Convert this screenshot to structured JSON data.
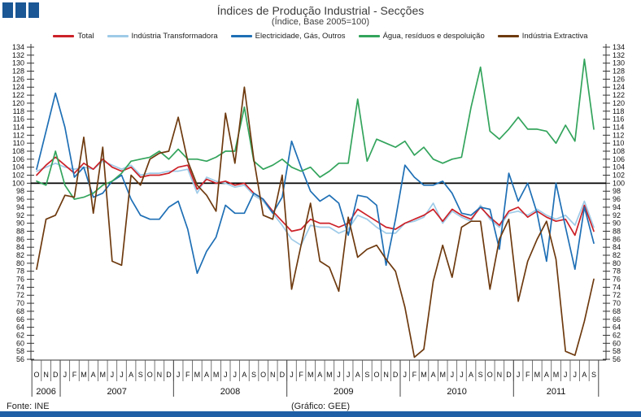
{
  "header": {
    "title": "Índices de Produção Industrial - Secções",
    "subtitle": "(Índice, Base 2005=100)"
  },
  "colors": {
    "logo_blue": "#1a5794",
    "bottom_bar_blue": "#1f5fa6",
    "baseline_black": "#000000"
  },
  "footer": {
    "source": "Fonte: INE",
    "credit": "(Gráfico: GEE)"
  },
  "chart_data": {
    "type": "line",
    "title": "Índices de Produção Industrial - Secções",
    "subtitle": "(Índice, Base 2005=100)",
    "ylim": [
      56,
      134
    ],
    "ytick_step": 2,
    "baseline": 100,
    "grid": false,
    "legend_position": "top",
    "x_month_labels": [
      "O",
      "N",
      "D",
      "J",
      "F",
      "M",
      "A",
      "M",
      "J",
      "J",
      "A",
      "S",
      "O",
      "N",
      "D",
      "J",
      "F",
      "M",
      "A",
      "M",
      "J",
      "J",
      "A",
      "S",
      "O",
      "N",
      "D",
      "J",
      "F",
      "M",
      "A",
      "M",
      "J",
      "J",
      "A",
      "S",
      "O",
      "N",
      "D",
      "J",
      "F",
      "M",
      "A",
      "M",
      "J",
      "J",
      "A",
      "S",
      "O",
      "N",
      "D",
      "J",
      "F",
      "M",
      "A",
      "M",
      "J",
      "J",
      "A",
      "S"
    ],
    "years": [
      {
        "label": "2006",
        "months": 3
      },
      {
        "label": "2007",
        "months": 12
      },
      {
        "label": "2008",
        "months": 12
      },
      {
        "label": "2009",
        "months": 12
      },
      {
        "label": "2010",
        "months": 12
      },
      {
        "label": "2011",
        "months": 9
      }
    ],
    "series": [
      {
        "id": "total",
        "name": "Total",
        "color": "#cc2128",
        "values": [
          102,
          104.5,
          106.5,
          104.5,
          102.5,
          105,
          103.5,
          106,
          104,
          103,
          104,
          101.5,
          102,
          102,
          102.5,
          104,
          104.5,
          98.5,
          101,
          100,
          100.5,
          99.5,
          100,
          97.5,
          96,
          93,
          90.5,
          88,
          88.5,
          91,
          90,
          90,
          89,
          90,
          93.5,
          92,
          90.5,
          89,
          88.5,
          90,
          91,
          92,
          93.5,
          90.5,
          93.5,
          92,
          91,
          94,
          91.5,
          89.5,
          93,
          94,
          91.5,
          93,
          91.5,
          90.5,
          91,
          87,
          94.5,
          88
        ]
      },
      {
        "id": "industria-transformadora",
        "name": "Indústria Transformadora",
        "color": "#9fcbe8",
        "values": [
          103,
          104,
          105,
          104,
          103.5,
          104,
          103.5,
          105.5,
          104.5,
          103.5,
          104.5,
          102,
          102.5,
          102.5,
          103,
          103,
          103.5,
          97.5,
          101.5,
          100.5,
          100,
          99,
          99.5,
          97,
          95.5,
          92.5,
          89.5,
          86,
          84.5,
          89.5,
          89,
          89,
          87.5,
          88.5,
          92,
          91,
          89,
          87.5,
          87.5,
          90,
          90.5,
          91.5,
          95,
          90,
          93,
          91.5,
          90.5,
          94.5,
          91,
          89,
          92.5,
          93,
          92,
          93.5,
          92,
          91,
          92,
          89.5,
          95.5,
          89
        ]
      },
      {
        "id": "electricidade-gas-outros",
        "name": "Electricidade, Gás, Outros",
        "color": "#1e6fb5",
        "values": [
          103.5,
          113,
          122.5,
          114,
          101.5,
          104,
          96.5,
          97.5,
          100.5,
          102,
          96,
          92,
          91,
          91,
          94,
          95.5,
          88.5,
          77.5,
          83,
          86.5,
          94.5,
          92.5,
          92.5,
          97.5,
          96,
          92.5,
          96.5,
          110.5,
          104,
          98,
          95.5,
          97,
          95,
          87,
          97,
          96.5,
          94.5,
          79.5,
          91,
          104.5,
          101.5,
          99.5,
          99.5,
          100.5,
          97.5,
          92.5,
          92,
          94,
          93.5,
          83.5,
          102.5,
          95.5,
          100,
          92.5,
          80.5,
          100,
          89,
          78.5,
          94,
          85
        ]
      },
      {
        "id": "agua-residuos-despoluicao",
        "name": "Água, resíduos e despoluição",
        "color": "#33a45c",
        "values": [
          100.5,
          99.5,
          108,
          99.5,
          96,
          96.5,
          97.5,
          99.5,
          100.5,
          102.5,
          105.5,
          106,
          106.5,
          108,
          106,
          108.5,
          106,
          106,
          105.5,
          106.5,
          108,
          108,
          119,
          105.5,
          103.5,
          104.5,
          106,
          104,
          103,
          104,
          101.5,
          103,
          105,
          105,
          121,
          105.5,
          111,
          110,
          109,
          110.5,
          107,
          109,
          106,
          105,
          106,
          106.5,
          119,
          129,
          113,
          111,
          113.5,
          116.5,
          113.5,
          113.5,
          113,
          110,
          114.5,
          110.5,
          131,
          113.5
        ]
      },
      {
        "id": "industria-extractiva",
        "name": "Indústria Extractiva",
        "color": "#6e3a0f",
        "values": [
          78.5,
          91,
          92,
          97,
          96.5,
          111.5,
          92.5,
          109,
          80.5,
          79.5,
          102,
          99.5,
          106,
          107.5,
          108,
          116.5,
          105.5,
          99.5,
          97,
          93,
          117.5,
          105,
          124,
          106,
          92,
          91,
          102,
          73.5,
          84.5,
          95,
          80.5,
          79,
          73,
          91.5,
          81.5,
          83.5,
          84.5,
          81,
          78,
          69,
          56.5,
          58.5,
          75.5,
          84.5,
          76.5,
          89,
          90.5,
          90.5,
          73.5,
          86,
          91,
          70.5,
          80.5,
          86,
          90.5,
          81,
          58,
          57,
          65.5,
          76
        ]
      }
    ]
  }
}
